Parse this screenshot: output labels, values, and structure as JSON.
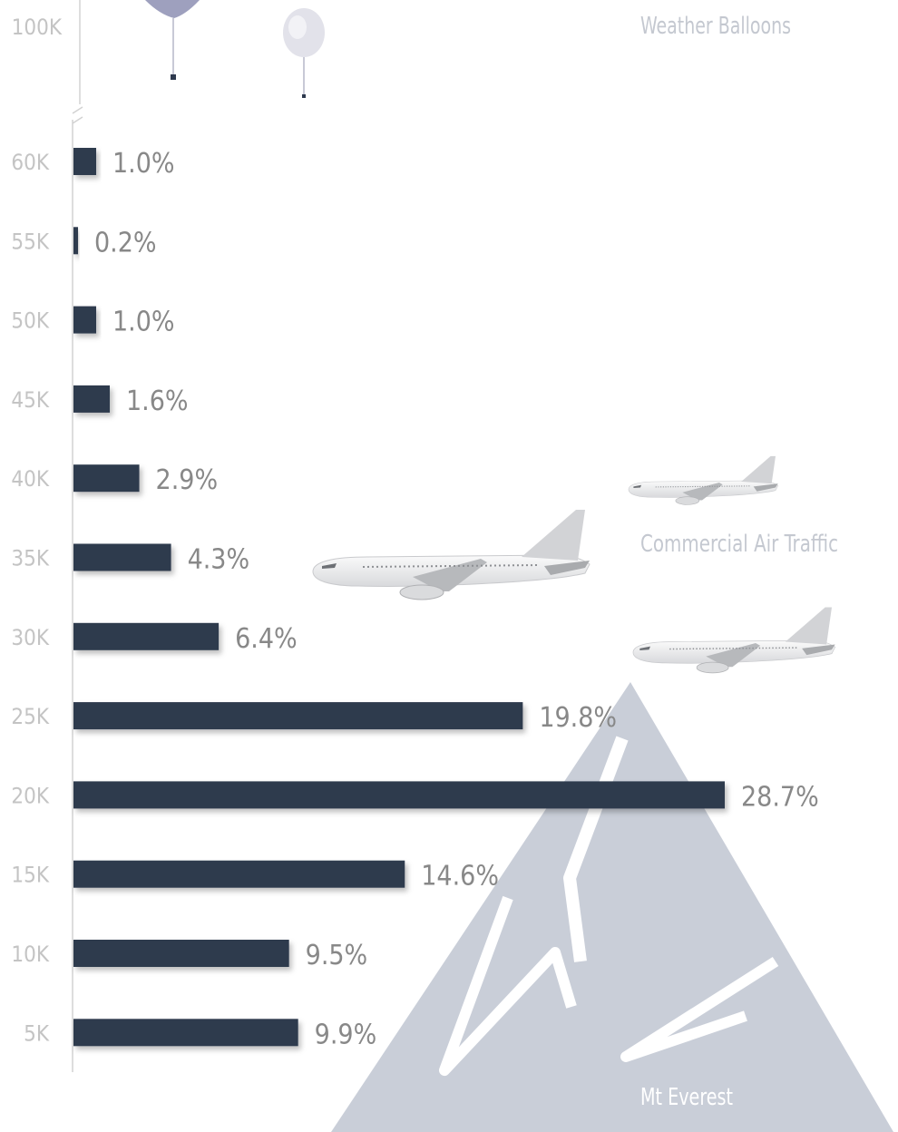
{
  "chart_data": {
    "type": "bar",
    "orientation": "horizontal",
    "categories": [
      "60K",
      "55K",
      "50K",
      "45K",
      "40K",
      "35K",
      "30K",
      "25K",
      "20K",
      "15K",
      "10K",
      "5K"
    ],
    "values": [
      1.0,
      0.2,
      1.0,
      1.6,
      2.9,
      4.3,
      6.4,
      19.8,
      28.7,
      14.6,
      9.5,
      9.9
    ],
    "value_labels": [
      "1.0%",
      "0.2%",
      "1.0%",
      "1.6%",
      "2.9%",
      "4.3%",
      "6.4%",
      "19.8%",
      "28.7%",
      "14.6%",
      "9.5%",
      "9.9%"
    ],
    "top_tick": "100K",
    "title": "",
    "xlabel": "",
    "ylabel": "",
    "xlim": [
      0,
      28.7
    ],
    "grid": false,
    "annotations": [
      "Weather Balloons",
      "Commercial Air Traffic",
      "Mt Everest"
    ]
  },
  "colors": {
    "bar": "#2e3a4e",
    "label": "#888888",
    "annotation": "#c4c8d0",
    "mountain": "#c9ced8",
    "balloon": "#a8aac4"
  },
  "icons": [
    "weather-balloon-icon",
    "airplane-icon",
    "mountain-icon"
  ]
}
